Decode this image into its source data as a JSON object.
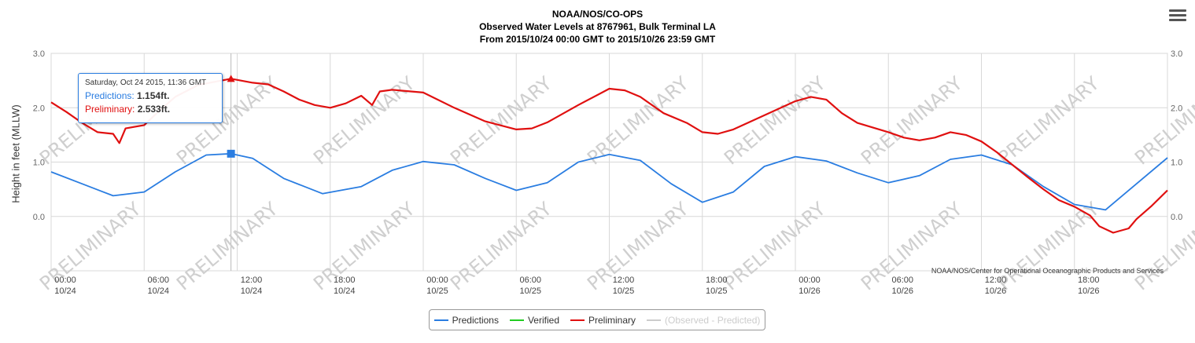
{
  "title": {
    "line1": "NOAA/NOS/CO-OPS",
    "line2": "Observed Water Levels at 8767961, Bulk Terminal LA",
    "line3": "From 2015/10/24 00:00 GMT to 2015/10/26 23:59 GMT"
  },
  "watermark_text": "PRELIMINARY",
  "credit": "NOAA/NOS/Center for Operational Oceanographic Products and Services",
  "tooltip": {
    "date": "Saturday, Oct 24 2015, 11:36 GMT",
    "predictions_label": "Predictions:",
    "predictions_value": "1.154ft.",
    "preliminary_label": "Preliminary:",
    "preliminary_value": "2.533ft."
  },
  "legend": {
    "items": [
      {
        "label": "Predictions",
        "color": "#2a7de1",
        "hidden": false
      },
      {
        "label": "Verified",
        "color": "#22cc22",
        "hidden": false
      },
      {
        "label": "Preliminary",
        "color": "#e01010",
        "hidden": false
      },
      {
        "label": "(Observed - Predicted)",
        "color": "#cccccc",
        "hidden": true
      }
    ]
  },
  "colors": {
    "predictions": "#2a7de1",
    "preliminary": "#e01010",
    "grid": "#d8d8d8",
    "watermark": "#cfcfcf"
  },
  "chart_data": {
    "type": "line",
    "ylabel": "Height in feet (MLLW)",
    "ylim": [
      -1.0,
      3.0
    ],
    "xlim": [
      0,
      72
    ],
    "x_unit": "hours from 2015/10/24 00:00 GMT",
    "y_ticks_left": [
      "3.0",
      "2.0",
      "1.0",
      "0.0"
    ],
    "y_ticks_right": [
      "3.0",
      "2.0",
      "1.0",
      "0.0"
    ],
    "y_tick_values": [
      3,
      2,
      1,
      0
    ],
    "x_ticks": [
      {
        "x": 0,
        "time": "00:00",
        "date": "10/24"
      },
      {
        "x": 6,
        "time": "06:00",
        "date": "10/24"
      },
      {
        "x": 12,
        "time": "12:00",
        "date": "10/24"
      },
      {
        "x": 18,
        "time": "18:00",
        "date": "10/24"
      },
      {
        "x": 24,
        "time": "00:00",
        "date": "10/25"
      },
      {
        "x": 30,
        "time": "06:00",
        "date": "10/25"
      },
      {
        "x": 36,
        "time": "12:00",
        "date": "10/25"
      },
      {
        "x": 42,
        "time": "18:00",
        "date": "10/25"
      },
      {
        "x": 48,
        "time": "00:00",
        "date": "10/26"
      },
      {
        "x": 54,
        "time": "06:00",
        "date": "10/26"
      },
      {
        "x": 60,
        "time": "12:00",
        "date": "10/26"
      },
      {
        "x": 66,
        "time": "18:00",
        "date": "10/26"
      }
    ],
    "crosshair_x": 11.6,
    "series": [
      {
        "name": "Predictions",
        "color": "#2a7de1",
        "points": [
          [
            0,
            0.82
          ],
          [
            2,
            0.6
          ],
          [
            4,
            0.38
          ],
          [
            6,
            0.45
          ],
          [
            8,
            0.82
          ],
          [
            10,
            1.13
          ],
          [
            11.6,
            1.154
          ],
          [
            13,
            1.07
          ],
          [
            15,
            0.7
          ],
          [
            17.5,
            0.42
          ],
          [
            20,
            0.55
          ],
          [
            22,
            0.85
          ],
          [
            24,
            1.01
          ],
          [
            26,
            0.95
          ],
          [
            28,
            0.7
          ],
          [
            30,
            0.48
          ],
          [
            32,
            0.62
          ],
          [
            34,
            1.0
          ],
          [
            36,
            1.14
          ],
          [
            38,
            1.03
          ],
          [
            40,
            0.6
          ],
          [
            42,
            0.26
          ],
          [
            44,
            0.45
          ],
          [
            46,
            0.92
          ],
          [
            48,
            1.1
          ],
          [
            50,
            1.02
          ],
          [
            52,
            0.8
          ],
          [
            54,
            0.62
          ],
          [
            56,
            0.75
          ],
          [
            58,
            1.05
          ],
          [
            60,
            1.13
          ],
          [
            62,
            0.95
          ],
          [
            64,
            0.55
          ],
          [
            66,
            0.22
          ],
          [
            68,
            0.12
          ],
          [
            70,
            0.6
          ],
          [
            72,
            1.08
          ]
        ],
        "marker": {
          "x": 11.6,
          "y": 1.154,
          "shape": "square"
        }
      },
      {
        "name": "Preliminary",
        "color": "#e01010",
        "points": [
          [
            0,
            2.1
          ],
          [
            1,
            1.92
          ],
          [
            2,
            1.72
          ],
          [
            3,
            1.55
          ],
          [
            4,
            1.52
          ],
          [
            4.4,
            1.35
          ],
          [
            4.8,
            1.62
          ],
          [
            6,
            1.68
          ],
          [
            7,
            1.95
          ],
          [
            8,
            2.2
          ],
          [
            9.5,
            2.42
          ],
          [
            11.6,
            2.533
          ],
          [
            13,
            2.46
          ],
          [
            14,
            2.43
          ],
          [
            15,
            2.3
          ],
          [
            16,
            2.15
          ],
          [
            17,
            2.05
          ],
          [
            18,
            2.0
          ],
          [
            19,
            2.08
          ],
          [
            20,
            2.22
          ],
          [
            20.7,
            2.05
          ],
          [
            21.2,
            2.3
          ],
          [
            22,
            2.33
          ],
          [
            24,
            2.28
          ],
          [
            26,
            2.0
          ],
          [
            28,
            1.75
          ],
          [
            30,
            1.6
          ],
          [
            31,
            1.62
          ],
          [
            32,
            1.73
          ],
          [
            34,
            2.05
          ],
          [
            36,
            2.35
          ],
          [
            37,
            2.32
          ],
          [
            38,
            2.2
          ],
          [
            39.5,
            1.9
          ],
          [
            41,
            1.72
          ],
          [
            42,
            1.55
          ],
          [
            43,
            1.52
          ],
          [
            44,
            1.6
          ],
          [
            46,
            1.86
          ],
          [
            48,
            2.12
          ],
          [
            49,
            2.2
          ],
          [
            50,
            2.15
          ],
          [
            51,
            1.9
          ],
          [
            52,
            1.72
          ],
          [
            54,
            1.55
          ],
          [
            55,
            1.45
          ],
          [
            56,
            1.4
          ],
          [
            57,
            1.45
          ],
          [
            58,
            1.55
          ],
          [
            59,
            1.5
          ],
          [
            60,
            1.38
          ],
          [
            61,
            1.18
          ],
          [
            62,
            0.95
          ],
          [
            63,
            0.72
          ],
          [
            64,
            0.5
          ],
          [
            65,
            0.3
          ],
          [
            66,
            0.18
          ],
          [
            67,
            0.02
          ],
          [
            67.6,
            -0.18
          ],
          [
            68.5,
            -0.3
          ],
          [
            69.5,
            -0.22
          ],
          [
            70,
            -0.05
          ],
          [
            71,
            0.2
          ],
          [
            72,
            0.48
          ]
        ],
        "marker": {
          "x": 11.6,
          "y": 2.533,
          "shape": "triangle"
        }
      }
    ]
  }
}
